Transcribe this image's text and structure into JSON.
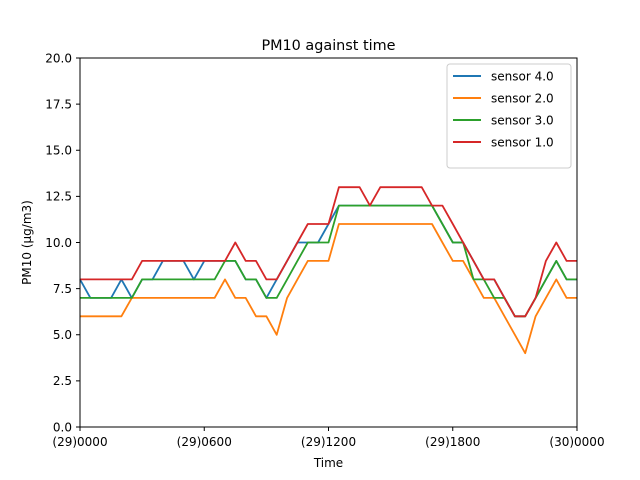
{
  "chart_data": {
    "type": "line",
    "title": "PM10 against  time",
    "xlabel": "Time",
    "ylabel": "PM10 (μg/m3)",
    "xlim": [
      0,
      24
    ],
    "ylim": [
      0,
      20
    ],
    "x_ticks": [
      {
        "value": 0,
        "label": "(29)0000"
      },
      {
        "value": 6,
        "label": "(29)0600"
      },
      {
        "value": 12,
        "label": "(29)1200"
      },
      {
        "value": 18,
        "label": "(29)1800"
      },
      {
        "value": 24,
        "label": "(30)0000"
      }
    ],
    "y_ticks": [
      {
        "value": 0,
        "label": "0.0"
      },
      {
        "value": 2.5,
        "label": "2.5"
      },
      {
        "value": 5,
        "label": "5.0"
      },
      {
        "value": 7.5,
        "label": "7.5"
      },
      {
        "value": 10,
        "label": "10.0"
      },
      {
        "value": 12.5,
        "label": "12.5"
      },
      {
        "value": 15,
        "label": "15.0"
      },
      {
        "value": 17.5,
        "label": "17.5"
      },
      {
        "value": 20,
        "label": "20.0"
      }
    ],
    "grid": false,
    "legend": "top-right",
    "series": [
      {
        "name": "sensor 4.0",
        "color": "#1f77b4",
        "x": [
          0,
          0.5,
          1,
          1.5,
          2,
          2.5,
          3,
          3.5,
          4,
          4.5,
          5,
          5.5,
          6,
          6.5,
          7,
          7.5,
          8,
          8.5,
          9,
          9.5,
          10,
          10.5,
          11,
          11.5,
          12,
          12.5,
          13,
          13.5,
          14,
          14.5,
          15,
          15.5,
          16,
          16.5,
          17,
          17.5,
          18,
          18.5,
          19,
          19.5,
          20,
          20.5,
          21,
          21.5,
          22,
          22.5,
          23,
          23.5,
          24
        ],
        "y": [
          8,
          7,
          7,
          7,
          8,
          7,
          8,
          8,
          9,
          9,
          9,
          8,
          9,
          9,
          9,
          9,
          8,
          8,
          7,
          8,
          9,
          10,
          10,
          10,
          11,
          12,
          12,
          12,
          12,
          12,
          12,
          12,
          12,
          12,
          12,
          11,
          10,
          10,
          9,
          8,
          8,
          7,
          6,
          6,
          7,
          8,
          9,
          8,
          8
        ]
      },
      {
        "name": "sensor 2.0",
        "color": "#ff7f0e",
        "x": [
          0,
          0.5,
          1,
          1.5,
          2,
          2.5,
          3,
          3.5,
          4,
          4.5,
          5,
          5.5,
          6,
          6.5,
          7,
          7.5,
          8,
          8.5,
          9,
          9.5,
          10,
          10.5,
          11,
          11.5,
          12,
          12.5,
          13,
          13.5,
          14,
          14.5,
          15,
          15.5,
          16,
          16.5,
          17,
          17.5,
          18,
          18.5,
          19,
          19.5,
          20,
          20.5,
          21,
          21.5,
          22,
          22.5,
          23,
          23.5,
          24
        ],
        "y": [
          6,
          6,
          6,
          6,
          6,
          7,
          7,
          7,
          7,
          7,
          7,
          7,
          7,
          7,
          8,
          7,
          7,
          6,
          6,
          5,
          7,
          8,
          9,
          9,
          9,
          11,
          11,
          11,
          11,
          11,
          11,
          11,
          11,
          11,
          11,
          10,
          9,
          9,
          8,
          7,
          7,
          6,
          5,
          4,
          6,
          7,
          8,
          7,
          7
        ]
      },
      {
        "name": "sensor 3.0",
        "color": "#2ca02c",
        "x": [
          0,
          0.5,
          1,
          1.5,
          2,
          2.5,
          3,
          3.5,
          4,
          4.5,
          5,
          5.5,
          6,
          6.5,
          7,
          7.5,
          8,
          8.5,
          9,
          9.5,
          10,
          10.5,
          11,
          11.5,
          12,
          12.5,
          13,
          13.5,
          14,
          14.5,
          15,
          15.5,
          16,
          16.5,
          17,
          17.5,
          18,
          18.5,
          19,
          19.5,
          20,
          20.5,
          21,
          21.5,
          22,
          22.5,
          23,
          23.5,
          24
        ],
        "y": [
          7,
          7,
          7,
          7,
          7,
          7,
          8,
          8,
          8,
          8,
          8,
          8,
          8,
          8,
          9,
          9,
          8,
          8,
          7,
          7,
          8,
          9,
          10,
          10,
          10,
          12,
          12,
          12,
          12,
          12,
          12,
          12,
          12,
          12,
          12,
          11,
          10,
          10,
          8,
          8,
          7,
          7,
          6,
          6,
          7,
          8,
          9,
          8,
          8
        ]
      },
      {
        "name": "sensor 1.0",
        "color": "#d62728",
        "x": [
          0,
          0.5,
          1,
          1.5,
          2,
          2.5,
          3,
          3.5,
          4,
          4.5,
          5,
          5.5,
          6,
          6.5,
          7,
          7.5,
          8,
          8.5,
          9,
          9.5,
          10,
          10.5,
          11,
          11.5,
          12,
          12.5,
          13,
          13.5,
          14,
          14.5,
          15,
          15.5,
          16,
          16.5,
          17,
          17.5,
          18,
          18.5,
          19,
          19.5,
          20,
          20.5,
          21,
          21.5,
          22,
          22.5,
          23,
          23.5,
          24
        ],
        "y": [
          8,
          8,
          8,
          8,
          8,
          8,
          9,
          9,
          9,
          9,
          9,
          9,
          9,
          9,
          9,
          10,
          9,
          9,
          8,
          8,
          9,
          10,
          11,
          11,
          11,
          13,
          13,
          13,
          12,
          13,
          13,
          13,
          13,
          13,
          12,
          12,
          11,
          10,
          9,
          8,
          8,
          7,
          6,
          6,
          7,
          9,
          10,
          9,
          9
        ]
      }
    ]
  }
}
